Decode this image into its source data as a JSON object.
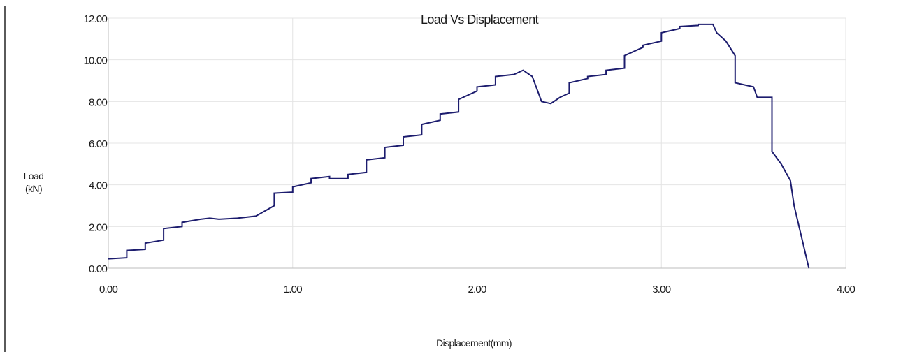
{
  "chart_data": {
    "type": "line",
    "title": "Load Vs Displacement",
    "xlabel": "Displacement(mm)",
    "ylabel_lines": [
      "Load",
      "(kN)"
    ],
    "xlim": [
      0,
      4
    ],
    "ylim": [
      0,
      12
    ],
    "x_ticks": [
      "0.00",
      "1.00",
      "2.00",
      "3.00",
      "4.00"
    ],
    "y_ticks": [
      "0.00",
      "2.00",
      "4.00",
      "6.00",
      "8.00",
      "10.00",
      "12.00"
    ],
    "x_tick_values": [
      0,
      1,
      2,
      3,
      4
    ],
    "y_tick_values": [
      0,
      2,
      4,
      6,
      8,
      10,
      12
    ],
    "grid": true,
    "line_color": "#1c1c6e",
    "grid_color": "#e4e4e4",
    "series": [
      {
        "x": [
          0.0,
          0.1,
          0.1,
          0.2,
          0.2,
          0.3,
          0.3,
          0.4,
          0.4,
          0.5,
          0.55,
          0.6,
          0.7,
          0.8,
          0.9,
          0.9,
          1.0,
          1.0,
          1.1,
          1.1,
          1.2,
          1.2,
          1.3,
          1.3,
          1.4,
          1.4,
          1.5,
          1.5,
          1.6,
          1.6,
          1.7,
          1.7,
          1.8,
          1.8,
          1.9,
          1.9,
          2.0,
          2.0,
          2.1,
          2.1,
          2.2,
          2.25,
          2.3,
          2.35,
          2.4,
          2.45,
          2.5,
          2.5,
          2.6,
          2.6,
          2.7,
          2.7,
          2.8,
          2.8,
          2.9,
          2.9,
          3.0,
          3.0,
          3.1,
          3.1,
          3.2,
          3.2,
          3.28,
          3.3,
          3.35,
          3.4,
          3.4,
          3.5,
          3.52,
          3.6,
          3.6,
          3.65,
          3.7,
          3.72,
          3.8
        ],
        "y": [
          0.45,
          0.5,
          0.85,
          0.9,
          1.2,
          1.35,
          1.9,
          2.0,
          2.2,
          2.35,
          2.4,
          2.35,
          2.4,
          2.5,
          3.0,
          3.6,
          3.65,
          3.9,
          4.1,
          4.3,
          4.4,
          4.3,
          4.3,
          4.5,
          4.6,
          5.2,
          5.3,
          5.8,
          5.9,
          6.3,
          6.4,
          6.9,
          7.1,
          7.4,
          7.5,
          8.1,
          8.5,
          8.7,
          8.8,
          9.2,
          9.3,
          9.5,
          9.2,
          8.0,
          7.9,
          8.2,
          8.4,
          8.9,
          9.1,
          9.2,
          9.3,
          9.5,
          9.6,
          10.2,
          10.6,
          10.7,
          10.9,
          11.3,
          11.5,
          11.6,
          11.65,
          11.7,
          11.7,
          11.3,
          10.9,
          10.2,
          8.9,
          8.7,
          8.2,
          8.2,
          5.6,
          5.0,
          4.2,
          3.0,
          0.0
        ]
      }
    ]
  }
}
